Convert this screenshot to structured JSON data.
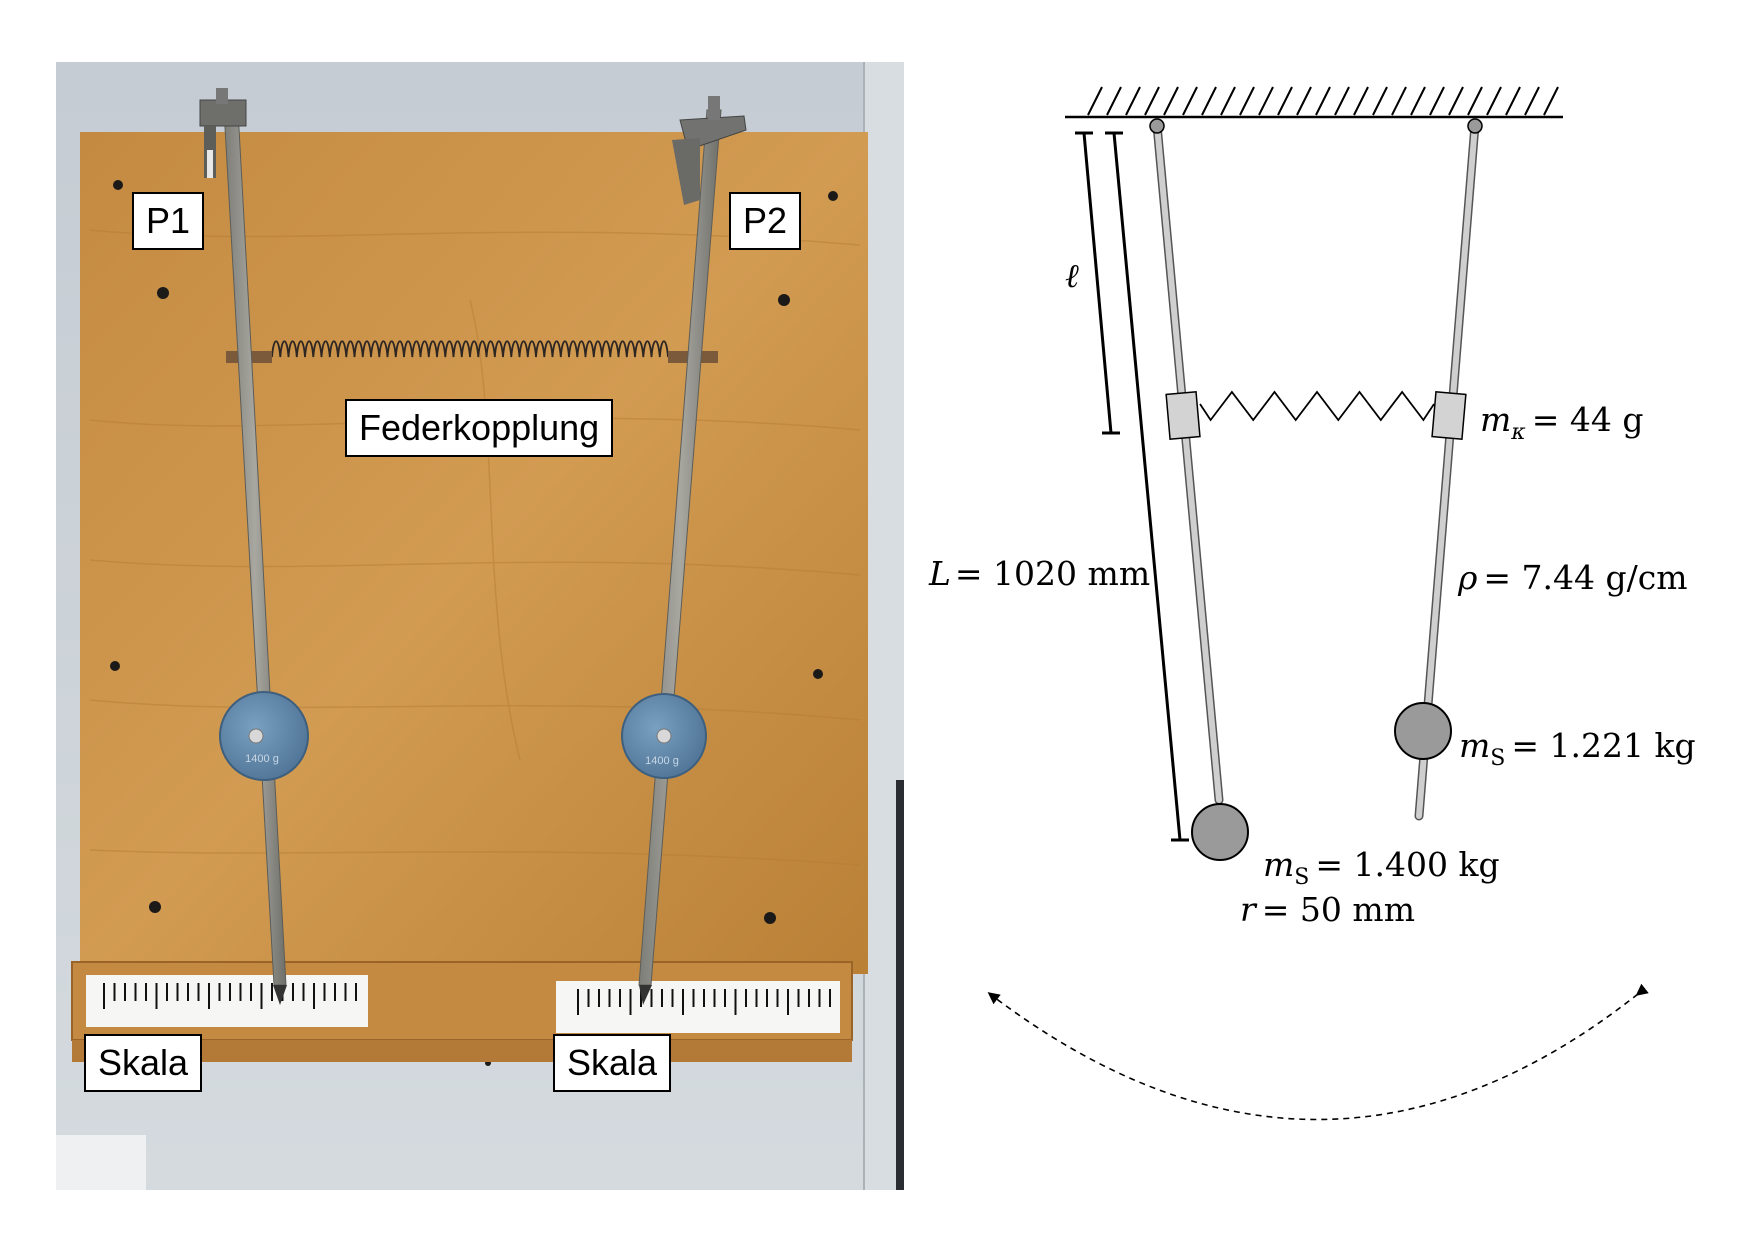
{
  "photo": {
    "labels": {
      "p1": "P1",
      "p2": "P2",
      "spring": "Federkopplung",
      "scale_left": "Skala",
      "scale_right": "Skala"
    },
    "weight_left_marking": "1400 g",
    "weight_right_marking": "1400 g"
  },
  "diagram": {
    "ell": "ℓ",
    "L_sym": "L",
    "L_val": "= 1020 mm",
    "mk_sym": "m",
    "mk_sub": "κ",
    "mk_val": "= 44 g",
    "rho_sym": "ρ",
    "rho_val": "= 7.44 g/cm",
    "ms2_sym": "m",
    "ms2_sub": "S",
    "ms2_val": "= 1.221 kg",
    "ms1_sym": "m",
    "ms1_sub": "S",
    "ms1_val": "= 1.400 kg",
    "r_sym": "r",
    "r_val": "= 50 mm"
  },
  "colors": {
    "wood": "#c98f44",
    "wall": "#c9d0d6",
    "weight_blue": "#5f86a8",
    "diagram_bob": "#9a9a9a"
  }
}
